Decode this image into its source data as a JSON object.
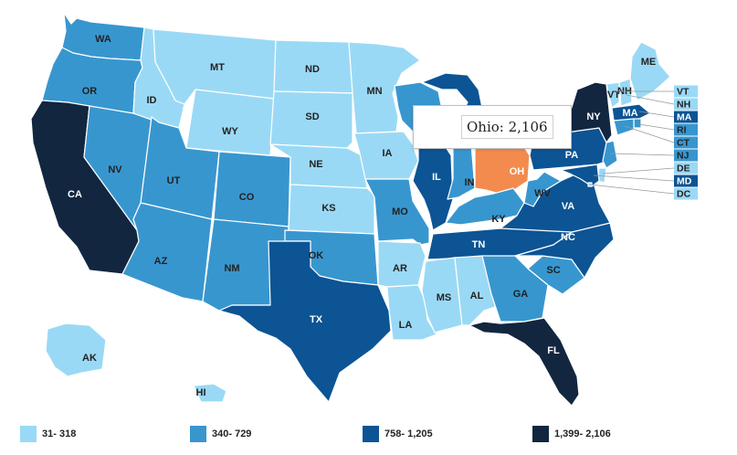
{
  "map": {
    "type": "choropleth",
    "region": "United States",
    "bins": [
      {
        "label": "31- 318",
        "color": "#9ad9f5",
        "text": "dark"
      },
      {
        "label": "340- 729",
        "color": "#3896cf",
        "text": "dark"
      },
      {
        "label": "758- 1,205",
        "color": "#0c5494",
        "text": "light"
      },
      {
        "label": "1,399- 2,106",
        "color": "#12263f",
        "text": "light"
      }
    ],
    "highlight_color": "#f38b4e",
    "states": {
      "WA": 1,
      "OR": 1,
      "CA": 3,
      "NV": 1,
      "ID": 0,
      "MT": 0,
      "WY": 0,
      "UT": 1,
      "AZ": 1,
      "CO": 1,
      "NM": 1,
      "ND": 0,
      "SD": 0,
      "NE": 0,
      "KS": 0,
      "OK": 1,
      "TX": 2,
      "MN": 0,
      "IA": 0,
      "MO": 1,
      "AR": 0,
      "LA": 0,
      "WI": 1,
      "IL": 2,
      "MI": 2,
      "IN": 1,
      "OH": "highlight",
      "KY": 1,
      "TN": 2,
      "MS": 0,
      "AL": 0,
      "GA": 1,
      "FL": 3,
      "SC": 1,
      "NC": 2,
      "VA": 2,
      "WV": 1,
      "PA": 2,
      "NY": 3,
      "ME": 0,
      "VT": 0,
      "NH": 0,
      "MA": 2,
      "RI": 1,
      "CT": 1,
      "NJ": 1,
      "DE": 0,
      "MD": 2,
      "DC": 0,
      "AK": 0,
      "HI": 0
    }
  },
  "tooltip": {
    "text": "Ohio: 2,106"
  },
  "legend": {
    "items": [
      {
        "label": "31- 318",
        "color": "#9ad9f5"
      },
      {
        "label": "340- 729",
        "color": "#3896cf"
      },
      {
        "label": "758- 1,205",
        "color": "#0c5494"
      },
      {
        "label": "1,399- 2,106",
        "color": "#12263f"
      }
    ]
  }
}
